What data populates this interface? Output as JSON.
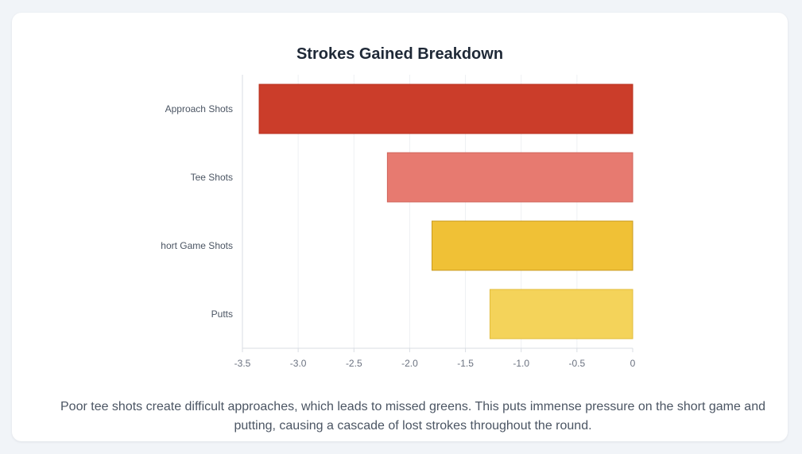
{
  "card": {
    "caption": "Poor tee shots create difficult approaches, which leads to missed greens. This puts immense pressure on the short game and putting, causing a cascade of lost strokes throughout the round."
  },
  "chart_data": {
    "type": "bar",
    "orientation": "horizontal",
    "title": "Strokes Gained Breakdown",
    "categories": [
      "Approach Shots",
      "Tee Shots",
      "Short Game Shots",
      "Putts"
    ],
    "values": [
      -3.35,
      -2.2,
      -1.8,
      -1.28
    ],
    "bar_colors": [
      "#cb3d2a",
      "#e77a70",
      "#f0c136",
      "#f4d35a"
    ],
    "bar_border_colors": [
      "#b8301f",
      "#d06359",
      "#c99a1d",
      "#e2bd3c"
    ],
    "xlim": [
      -3.5,
      0
    ],
    "xticks": [
      "-3.5",
      "-3.0",
      "-2.5",
      "-2.0",
      "-1.5",
      "-1.0",
      "-0.5",
      "0"
    ],
    "xtick_values": [
      -3.5,
      -3.0,
      -2.5,
      -2.0,
      -1.5,
      -1.0,
      -0.5,
      0
    ],
    "grid": true,
    "legend": "none"
  }
}
